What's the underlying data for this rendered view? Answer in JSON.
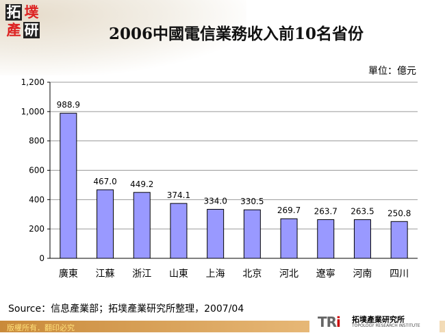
{
  "header": {
    "logo_text": "拓墣產研",
    "title": "2006中國電信業務收入前10名省份",
    "unit": "單位：億元"
  },
  "chart_data": {
    "type": "bar",
    "title": "2006中國電信業務收入前10名省份",
    "xlabel": "",
    "ylabel": "",
    "categories": [
      "廣東",
      "江蘇",
      "浙江",
      "山東",
      "上海",
      "北京",
      "河北",
      "遼寧",
      "河南",
      "四川"
    ],
    "values": [
      988.9,
      467.0,
      449.2,
      374.1,
      334.0,
      330.5,
      269.7,
      263.7,
      263.5,
      250.8
    ],
    "data_labels": [
      "988.9",
      "467.0",
      "449.2",
      "374.1",
      "334.0",
      "330.5",
      "269.7",
      "263.7",
      "263.5",
      "250.8"
    ],
    "ylim": [
      0,
      1200
    ],
    "yticks": [
      0,
      200,
      400,
      600,
      800,
      1000,
      1200
    ],
    "ytick_labels": [
      "0",
      "200",
      "400",
      "600",
      "800",
      "1,000",
      "1,200"
    ],
    "grid": true,
    "legend": "none",
    "bar_color": "#9999FF"
  },
  "footer": {
    "source": "Source：信息產業部；拓墣產業研究所整理，2007/04",
    "copyright": "版權所有．翻印必究",
    "brand_logo": "TRi",
    "brand_cn": "拓墣產業研究所",
    "brand_en": "TOPOLOGY RESEARCH INSTITUTE"
  }
}
